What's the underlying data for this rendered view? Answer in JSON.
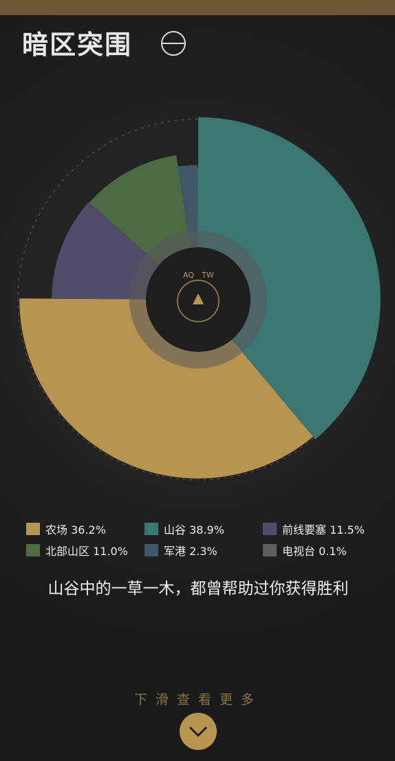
{
  "header": {
    "logo": "暗区突围"
  },
  "chart_data": {
    "type": "pie",
    "categories": [
      "农场",
      "山谷",
      "前线要塞",
      "北部山区",
      "军港",
      "电视台"
    ],
    "values": [
      36.2,
      38.9,
      11.5,
      11.0,
      2.3,
      0.1
    ],
    "value_labels": [
      "36.2%",
      "38.9%",
      "11.5%",
      "11.0%",
      "2.3%",
      "0.1%"
    ],
    "colors": [
      "#b99450",
      "#3b7672",
      "#504c69",
      "#4b6c43",
      "#3f5868",
      "#5e5e60"
    ],
    "center_labels": [
      "AQ",
      "TW"
    ]
  },
  "caption": "山谷中的一草一木，都曾帮助过你获得胜利",
  "scroll_hint": "下滑查看更多"
}
